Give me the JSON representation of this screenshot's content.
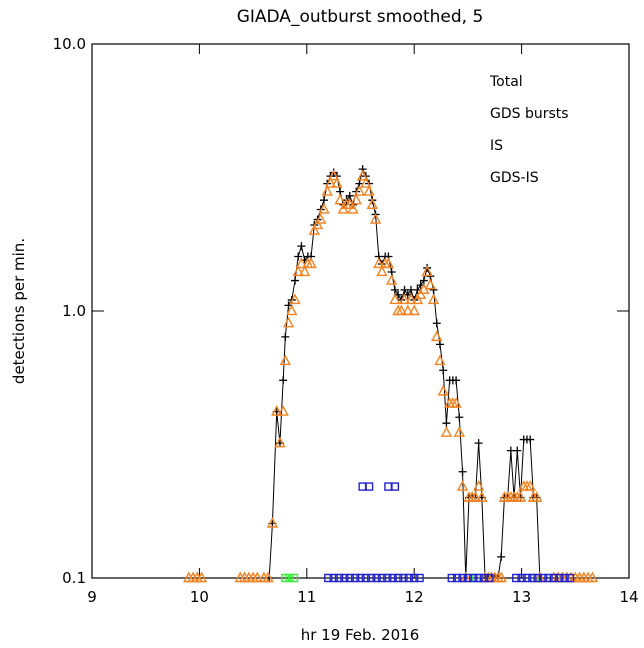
{
  "chart_data": {
    "type": "scatter",
    "title": "GIADA_outburst smoothed, 5",
    "x_label": "hr 19 Feb. 2016",
    "y_label": "detections per min.",
    "xlim": [
      9,
      14
    ],
    "xticks": [
      9,
      10,
      11,
      12,
      13,
      14
    ],
    "ylim": [
      0.1,
      10
    ],
    "yticks": [
      {
        "value": 0.1,
        "label": "0.1"
      },
      {
        "value": 1,
        "label": "1.0"
      },
      {
        "value": 10,
        "label": "10.0"
      }
    ],
    "y_scale": "log",
    "legend_position": "upper right",
    "series": [
      {
        "name": "Total",
        "color": "#000000",
        "marker": "plus",
        "line": true,
        "x": [
          10.65,
          10.68,
          10.72,
          10.75,
          10.78,
          10.8,
          10.83,
          10.86,
          10.89,
          10.92,
          10.95,
          10.98,
          11.01,
          11.04,
          11.07,
          11.1,
          11.13,
          11.16,
          11.19,
          11.22,
          11.25,
          11.28,
          11.31,
          11.34,
          11.37,
          11.4,
          11.43,
          11.46,
          11.49,
          11.52,
          11.55,
          11.58,
          11.61,
          11.64,
          11.67,
          11.7,
          11.73,
          11.76,
          11.79,
          11.82,
          11.85,
          11.88,
          11.91,
          11.94,
          11.97,
          12.0,
          12.03,
          12.06,
          12.09,
          12.12,
          12.15,
          12.18,
          12.21,
          12.24,
          12.27,
          12.3,
          12.33,
          12.36,
          12.39,
          12.42,
          12.45,
          12.48,
          12.51,
          12.54,
          12.57,
          12.6,
          12.63,
          12.66,
          12.69,
          12.72,
          12.75,
          12.78,
          12.81,
          12.84,
          12.87,
          12.9,
          12.93,
          12.96,
          12.99,
          13.02,
          13.05,
          13.08,
          13.11,
          13.14,
          13.17
        ],
        "values": [
          0.1,
          0.16,
          0.42,
          0.32,
          0.55,
          0.8,
          1.05,
          1.1,
          1.3,
          1.6,
          1.75,
          1.55,
          1.6,
          1.6,
          2.1,
          2.2,
          2.4,
          2.6,
          3.0,
          3.2,
          3.3,
          3.2,
          2.8,
          2.5,
          2.6,
          2.7,
          2.5,
          2.8,
          3.0,
          3.4,
          3.2,
          3.0,
          2.6,
          2.3,
          1.6,
          1.5,
          1.6,
          1.6,
          1.4,
          1.2,
          1.15,
          1.1,
          1.2,
          1.15,
          1.2,
          1.1,
          1.2,
          1.25,
          1.3,
          1.45,
          1.35,
          1.2,
          0.9,
          0.75,
          0.6,
          0.38,
          0.55,
          0.55,
          0.55,
          0.4,
          0.25,
          0.1,
          0.2,
          0.2,
          0.2,
          0.32,
          0.2,
          0.1,
          0.1,
          0.1,
          0.1,
          0.1,
          0.12,
          0.2,
          0.2,
          0.3,
          0.2,
          0.3,
          0.2,
          0.33,
          0.33,
          0.33,
          0.2,
          0.2,
          0.1
        ]
      },
      {
        "name": "GDS bursts",
        "color": "#33ee33",
        "marker": "square",
        "x": [
          10.8,
          10.84,
          10.88,
          12.58,
          13.12
        ],
        "values": [
          0.1,
          0.1,
          0.1,
          0.1,
          0.1
        ]
      },
      {
        "name": "IS",
        "color": "#f5821f",
        "marker": "triangle",
        "x": [
          9.9,
          9.94,
          9.98,
          10.02,
          10.38,
          10.42,
          10.46,
          10.5,
          10.54,
          10.6,
          10.64,
          10.68,
          10.72,
          10.75,
          10.78,
          10.8,
          10.83,
          10.86,
          10.89,
          10.92,
          10.95,
          10.98,
          11.01,
          11.04,
          11.07,
          11.1,
          11.13,
          11.16,
          11.19,
          11.22,
          11.25,
          11.28,
          11.31,
          11.34,
          11.37,
          11.4,
          11.43,
          11.46,
          11.49,
          11.52,
          11.55,
          11.58,
          11.61,
          11.64,
          11.67,
          11.7,
          11.73,
          11.76,
          11.79,
          11.82,
          11.85,
          11.88,
          11.91,
          11.94,
          11.97,
          12.0,
          12.03,
          12.06,
          12.09,
          12.12,
          12.15,
          12.18,
          12.21,
          12.24,
          12.27,
          12.3,
          12.33,
          12.36,
          12.39,
          12.42,
          12.45,
          12.48,
          12.51,
          12.54,
          12.57,
          12.6,
          12.63,
          12.66,
          12.69,
          12.72,
          12.75,
          12.78,
          12.81,
          12.84,
          12.87,
          12.9,
          12.93,
          12.96,
          12.99,
          13.02,
          13.05,
          13.08,
          13.11,
          13.14,
          13.17,
          13.3,
          13.34,
          13.38,
          13.42,
          13.46,
          13.5,
          13.54,
          13.58,
          13.62,
          13.66
        ],
        "values": [
          0.1,
          0.1,
          0.1,
          0.1,
          0.1,
          0.1,
          0.1,
          0.1,
          0.1,
          0.1,
          0.1,
          0.16,
          0.42,
          0.32,
          0.42,
          0.65,
          0.9,
          1.0,
          1.1,
          1.4,
          1.5,
          1.4,
          1.5,
          1.5,
          2.0,
          2.1,
          2.2,
          2.4,
          2.8,
          3.0,
          3.2,
          3.0,
          2.6,
          2.4,
          2.5,
          2.5,
          2.4,
          2.6,
          2.8,
          3.2,
          3.0,
          2.8,
          2.5,
          2.2,
          1.5,
          1.4,
          1.5,
          1.5,
          1.3,
          1.1,
          1.0,
          1.0,
          1.1,
          1.0,
          1.1,
          1.0,
          1.1,
          1.15,
          1.2,
          1.4,
          1.25,
          1.1,
          0.8,
          0.65,
          0.5,
          0.35,
          0.45,
          0.45,
          0.45,
          0.35,
          0.22,
          0.1,
          0.2,
          0.2,
          0.2,
          0.22,
          0.2,
          0.1,
          0.1,
          0.1,
          0.1,
          0.1,
          0.1,
          0.2,
          0.2,
          0.2,
          0.2,
          0.2,
          0.2,
          0.22,
          0.22,
          0.22,
          0.2,
          0.2,
          0.1,
          0.1,
          0.1,
          0.1,
          0.1,
          0.1,
          0.1,
          0.1,
          0.1,
          0.1,
          0.1
        ]
      },
      {
        "name": "GDS-IS",
        "color": "#2222cc",
        "marker": "square",
        "x": [
          11.2,
          11.25,
          11.3,
          11.35,
          11.4,
          11.45,
          11.5,
          11.55,
          11.6,
          11.65,
          11.7,
          11.75,
          11.8,
          11.85,
          11.9,
          11.95,
          12.0,
          12.05,
          11.52,
          11.58,
          11.76,
          11.82,
          12.35,
          12.4,
          12.45,
          12.5,
          12.55,
          12.6,
          12.65,
          12.7,
          12.95,
          13.0,
          13.05,
          13.1,
          13.15,
          13.2,
          13.25,
          13.3,
          13.35,
          13.4,
          13.45
        ],
        "values": [
          0.1,
          0.1,
          0.1,
          0.1,
          0.1,
          0.1,
          0.1,
          0.1,
          0.1,
          0.1,
          0.1,
          0.1,
          0.1,
          0.1,
          0.1,
          0.1,
          0.1,
          0.1,
          0.22,
          0.22,
          0.22,
          0.22,
          0.1,
          0.1,
          0.1,
          0.1,
          0.1,
          0.1,
          0.1,
          0.1,
          0.1,
          0.1,
          0.1,
          0.1,
          0.1,
          0.1,
          0.1,
          0.1,
          0.1,
          0.1,
          0.1
        ]
      }
    ]
  }
}
